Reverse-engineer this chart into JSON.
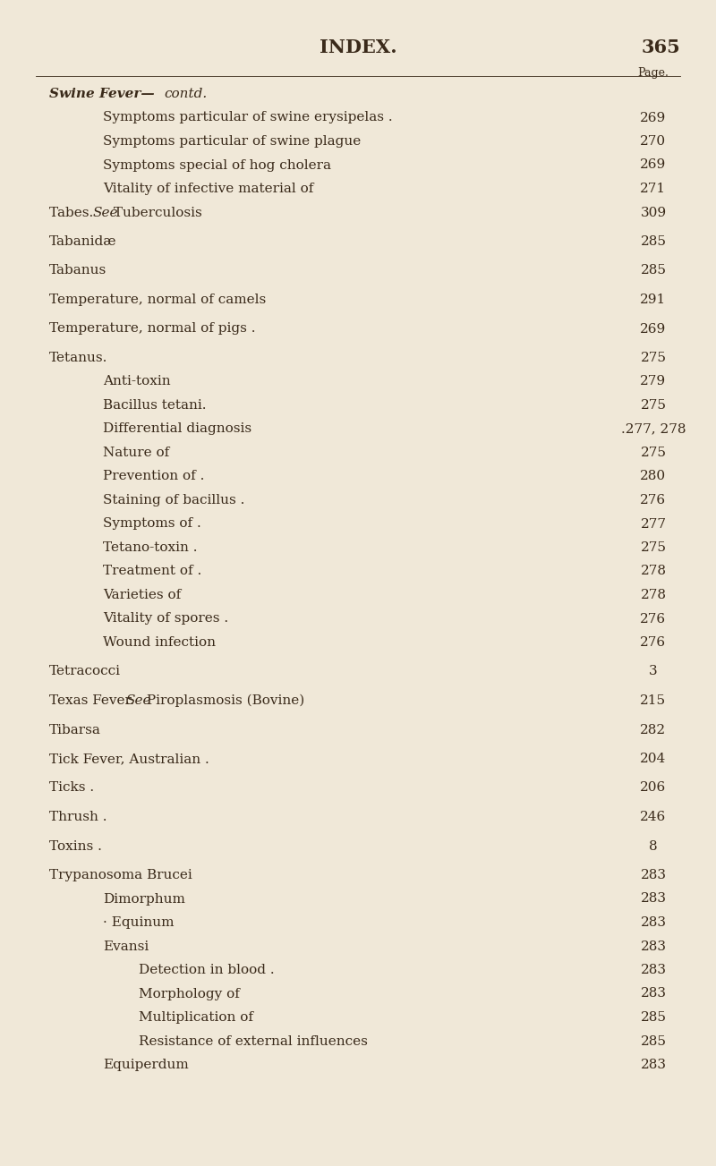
{
  "bg_color": "#f0e8d8",
  "text_color": "#3a2a1a",
  "title": "INDEX.",
  "page_num": "365",
  "page_label": "Page.",
  "figsize": [
    8.0,
    13.03
  ],
  "dpi": 100,
  "entries": [
    {
      "text": "Swine Fever—",
      "italic_part": "contd.",
      "indent": 0,
      "page": "",
      "swine_fever_head": true
    },
    {
      "text": "Symptoms particular of swine erysipelas .",
      "indent": 1,
      "page": "269"
    },
    {
      "text": "Symptoms particular of swine plague",
      "indent": 1,
      "page": "270"
    },
    {
      "text": "Symptoms special of hog cholera",
      "indent": 1,
      "page": "269"
    },
    {
      "text": "Vitality of infective material of",
      "indent": 1,
      "page": "271"
    },
    {
      "text": "Tabes.  ",
      "see_text": "See",
      "after_see": " Tuberculosis",
      "indent": 0,
      "page": "309"
    },
    {
      "text": "Tabanidæ",
      "indent": 0,
      "page": "285",
      "extra_space": true
    },
    {
      "text": "Tabanus",
      "indent": 0,
      "page": "285",
      "extra_space": true
    },
    {
      "text": "Temperature, normal of camels",
      "indent": 0,
      "page": "291",
      "extra_space": true
    },
    {
      "text": "Temperature, normal of pigs .",
      "indent": 0,
      "page": "269",
      "extra_space": true
    },
    {
      "text": "Tetanus.",
      "indent": 0,
      "page": "275",
      "extra_space": true
    },
    {
      "text": "Anti-toxin",
      "indent": 1,
      "page": "279"
    },
    {
      "text": "Bacillus tetani.",
      "indent": 1,
      "page": "275"
    },
    {
      "text": "Differential diagnosis",
      "indent": 1,
      "page": ".277, 278"
    },
    {
      "text": "Nature of",
      "indent": 1,
      "page": "275"
    },
    {
      "text": "Prevention of .",
      "indent": 1,
      "page": "280"
    },
    {
      "text": "Staining of bacillus .",
      "indent": 1,
      "page": "276"
    },
    {
      "text": "Symptoms of .",
      "indent": 1,
      "page": "277"
    },
    {
      "text": "Tetano-toxin .",
      "indent": 1,
      "page": "275"
    },
    {
      "text": "Treatment of .",
      "indent": 1,
      "page": "278"
    },
    {
      "text": "Varieties of",
      "indent": 1,
      "page": "278"
    },
    {
      "text": "Vitality of spores .",
      "indent": 1,
      "page": "276"
    },
    {
      "text": "Wound infection",
      "indent": 1,
      "page": "276"
    },
    {
      "text": "Tetracocci",
      "indent": 0,
      "page": "3",
      "extra_space": true
    },
    {
      "text": "Texas Fever.  ",
      "see_text": "See",
      "after_see": " Piroplasmosis (Bovine)",
      "indent": 0,
      "page": "215",
      "extra_space": true
    },
    {
      "text": "Tibarsa",
      "indent": 0,
      "page": "282",
      "extra_space": true
    },
    {
      "text": "Tick Fever, Australian .",
      "indent": 0,
      "page": "204",
      "extra_space": true
    },
    {
      "text": "Ticks .",
      "indent": 0,
      "page": "206",
      "extra_space": true
    },
    {
      "text": "Thrush .",
      "indent": 0,
      "page": "246",
      "extra_space": true
    },
    {
      "text": "Toxins .",
      "indent": 0,
      "page": "8",
      "extra_space": true
    },
    {
      "text": "Trypanosoma Brucei",
      "indent": 0,
      "page": "283",
      "extra_space": true
    },
    {
      "text": "Dimorphum",
      "indent": 1,
      "page": "283"
    },
    {
      "text": "· Equinum",
      "indent": 1,
      "page": "283"
    },
    {
      "text": "Evansi",
      "indent": 1,
      "page": "283"
    },
    {
      "text": "Detection in blood .",
      "indent": 2,
      "page": "283"
    },
    {
      "text": "Morphology of",
      "indent": 2,
      "page": "283"
    },
    {
      "text": "Multiplication of",
      "indent": 2,
      "page": "285"
    },
    {
      "text": "Resistance of external influences",
      "indent": 2,
      "page": "285"
    },
    {
      "text": "Equiperdum",
      "indent": 1,
      "page": "283"
    }
  ]
}
